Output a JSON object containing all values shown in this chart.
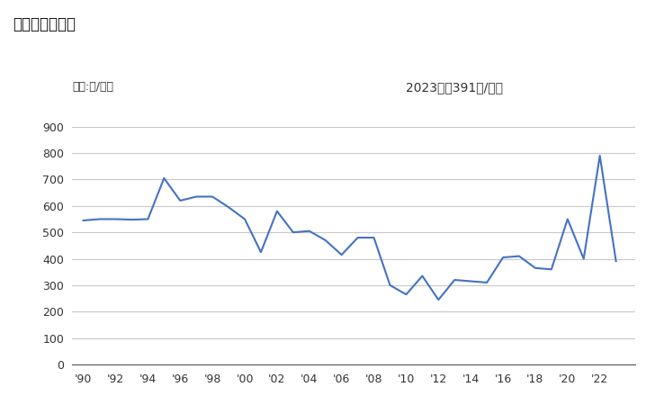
{
  "title": "輸出価格の推移",
  "unit_label": "単位:円/平米",
  "annotation": "2023年：391円/平米",
  "line_color": "#4472C4",
  "bg_color": "#ffffff",
  "grid_color": "#c8c8c8",
  "ylim": [
    0,
    950
  ],
  "yticks": [
    0,
    100,
    200,
    300,
    400,
    500,
    600,
    700,
    800,
    900
  ],
  "years": [
    1990,
    1991,
    1992,
    1993,
    1994,
    1995,
    1996,
    1997,
    1998,
    1999,
    2000,
    2001,
    2002,
    2003,
    2004,
    2005,
    2006,
    2007,
    2008,
    2009,
    2010,
    2011,
    2012,
    2013,
    2014,
    2015,
    2016,
    2017,
    2018,
    2019,
    2020,
    2021,
    2022,
    2023
  ],
  "values": [
    545,
    550,
    550,
    548,
    550,
    705,
    620,
    635,
    635,
    595,
    550,
    425,
    580,
    500,
    505,
    470,
    415,
    480,
    480,
    300,
    265,
    335,
    245,
    320,
    315,
    310,
    405,
    410,
    365,
    360,
    550,
    400,
    790,
    391
  ],
  "xtick_years": [
    1990,
    1992,
    1994,
    1996,
    1998,
    2000,
    2002,
    2004,
    2006,
    2008,
    2010,
    2012,
    2014,
    2016,
    2018,
    2020,
    2022
  ]
}
